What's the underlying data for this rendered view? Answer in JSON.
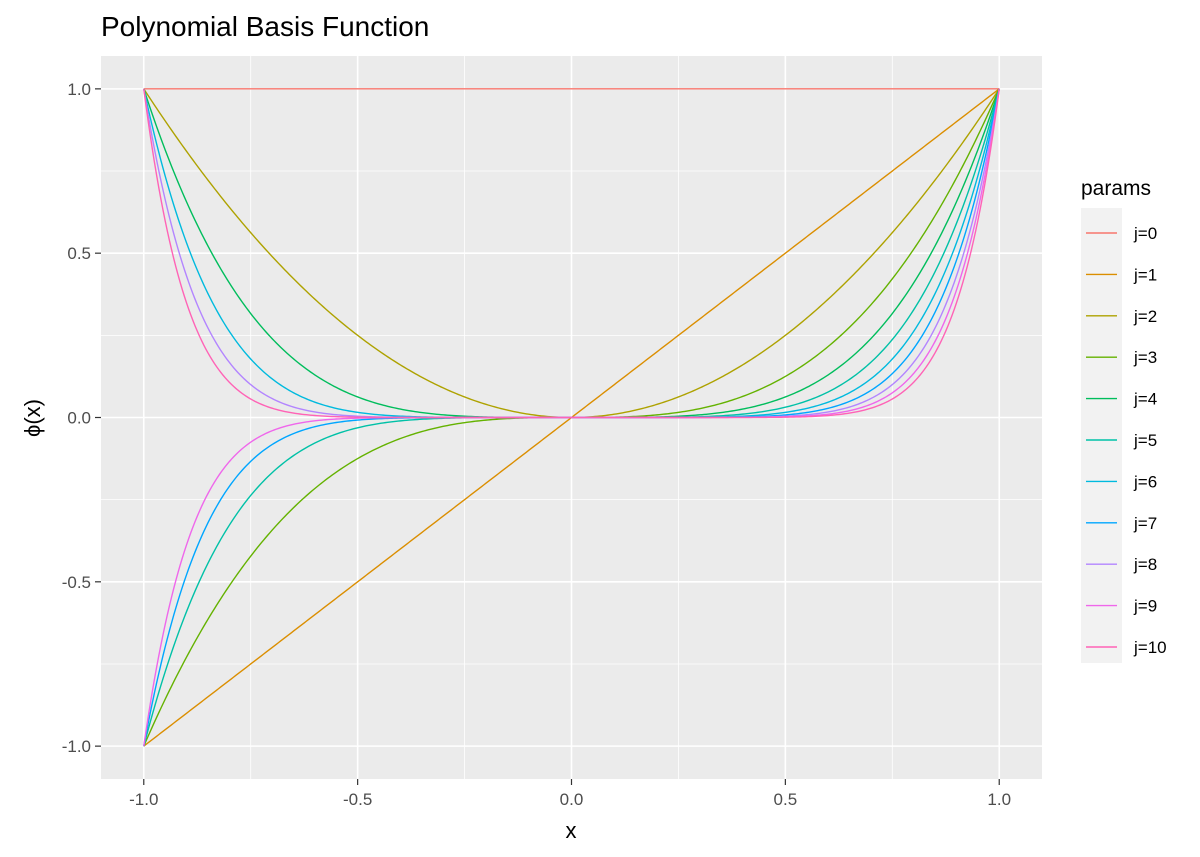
{
  "chart_data": {
    "type": "line",
    "title": "Polynomial Basis Function",
    "xlabel": "x",
    "ylabel": "ϕ(x)",
    "xlim": [
      -1.1,
      1.1
    ],
    "ylim": [
      -1.1,
      1.1
    ],
    "x_ticks": [
      -1.0,
      -0.5,
      0.0,
      0.5,
      1.0
    ],
    "x_tick_labels": [
      "-1.0",
      "-0.5",
      "0.0",
      "0.5",
      "1.0"
    ],
    "y_ticks": [
      -1.0,
      -0.5,
      0.0,
      0.5,
      1.0
    ],
    "y_tick_labels": [
      "-1.0",
      "-0.5",
      "0.0",
      "0.5",
      "1.0"
    ],
    "x_range": [
      -1.0,
      1.0
    ],
    "function": "x^j",
    "grid": true,
    "legend_title": "params",
    "legend_position": "right",
    "series": [
      {
        "name": "j=0",
        "exponent": 0,
        "color": "#F8766D"
      },
      {
        "name": "j=1",
        "exponent": 1,
        "color": "#DB8E00"
      },
      {
        "name": "j=2",
        "exponent": 2,
        "color": "#AEA200"
      },
      {
        "name": "j=3",
        "exponent": 3,
        "color": "#64B200"
      },
      {
        "name": "j=4",
        "exponent": 4,
        "color": "#00BD5C"
      },
      {
        "name": "j=5",
        "exponent": 5,
        "color": "#00C1A7"
      },
      {
        "name": "j=6",
        "exponent": 6,
        "color": "#00BADE"
      },
      {
        "name": "j=7",
        "exponent": 7,
        "color": "#00A6FF"
      },
      {
        "name": "j=8",
        "exponent": 8,
        "color": "#B385FF"
      },
      {
        "name": "j=9",
        "exponent": 9,
        "color": "#EF67EB"
      },
      {
        "name": "j=10",
        "exponent": 10,
        "color": "#FF63B6"
      }
    ],
    "panel_background": "#EBEBEB",
    "grid_color": "#FFFFFF"
  }
}
